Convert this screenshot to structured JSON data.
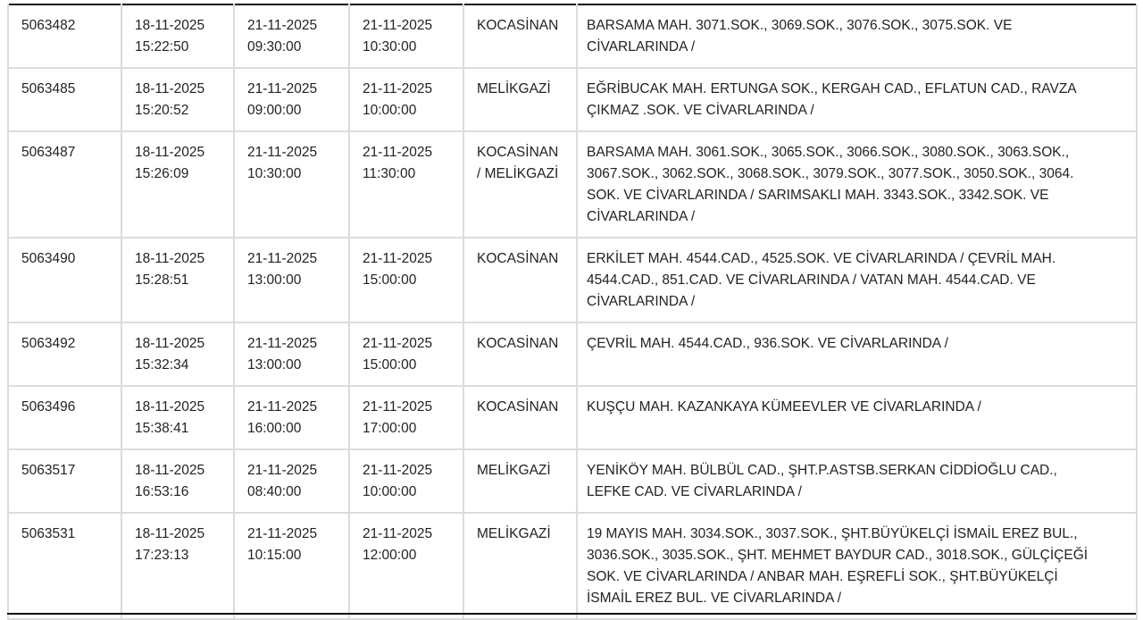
{
  "rows": [
    {
      "id": "5063482",
      "created": [
        "18-11-2025",
        "15:22:50"
      ],
      "start": [
        "21-11-2025",
        "09:30:00"
      ],
      "end": [
        "21-11-2025",
        "10:30:00"
      ],
      "district": [
        "KOCASİNAN"
      ],
      "address": [
        "BARSAMA MAH. 3071.SOK., 3069.SOK., 3076.SOK., 3075.SOK. VE",
        "CİVARLARINDA /"
      ]
    },
    {
      "id": "5063485",
      "created": [
        "18-11-2025",
        "15:20:52"
      ],
      "start": [
        "21-11-2025",
        "09:00:00"
      ],
      "end": [
        "21-11-2025",
        "10:00:00"
      ],
      "district": [
        "MELİKGAZİ"
      ],
      "address": [
        "EĞRİBUCAK MAH. ERTUNGA SOK., KERGAH CAD., EFLATUN CAD., RAVZA",
        "ÇIKMAZ .SOK. VE CİVARLARINDA /"
      ]
    },
    {
      "id": "5063487",
      "created": [
        "18-11-2025",
        "15:26:09"
      ],
      "start": [
        "21-11-2025",
        "10:30:00"
      ],
      "end": [
        "21-11-2025",
        "11:30:00"
      ],
      "district": [
        "KOCASİNAN",
        "/ MELİKGAZİ"
      ],
      "address": [
        "BARSAMA MAH. 3061.SOK., 3065.SOK., 3066.SOK., 3080.SOK., 3063.SOK.,",
        "3067.SOK., 3062.SOK., 3068.SOK., 3079.SOK., 3077.SOK., 3050.SOK., 3064.",
        "SOK. VE CİVARLARINDA / SARIMSAKLI MAH. 3343.SOK., 3342.SOK. VE",
        "CİVARLARINDA /"
      ]
    },
    {
      "id": "5063490",
      "created": [
        "18-11-2025",
        "15:28:51"
      ],
      "start": [
        "21-11-2025",
        "13:00:00"
      ],
      "end": [
        "21-11-2025",
        "15:00:00"
      ],
      "district": [
        "KOCASİNAN"
      ],
      "address": [
        "ERKİLET MAH. 4544.CAD., 4525.SOK. VE CİVARLARINDA / ÇEVRİL MAH.",
        "4544.CAD., 851.CAD. VE CİVARLARINDA / VATAN MAH. 4544.CAD. VE",
        "CİVARLARINDA /"
      ]
    },
    {
      "id": "5063492",
      "created": [
        "18-11-2025",
        "15:32:34"
      ],
      "start": [
        "21-11-2025",
        "13:00:00"
      ],
      "end": [
        "21-11-2025",
        "15:00:00"
      ],
      "district": [
        "KOCASİNAN"
      ],
      "address": [
        "ÇEVRİL MAH. 4544.CAD., 936.SOK. VE CİVARLARINDA /"
      ]
    },
    {
      "id": "5063496",
      "created": [
        "18-11-2025",
        "15:38:41"
      ],
      "start": [
        "21-11-2025",
        "16:00:00"
      ],
      "end": [
        "21-11-2025",
        "17:00:00"
      ],
      "district": [
        "KOCASİNAN"
      ],
      "address": [
        "KUŞÇU MAH. KAZANKAYA KÜMEEVLER VE CİVARLARINDA /"
      ]
    },
    {
      "id": "5063517",
      "created": [
        "18-11-2025",
        "16:53:16"
      ],
      "start": [
        "21-11-2025",
        "08:40:00"
      ],
      "end": [
        "21-11-2025",
        "10:00:00"
      ],
      "district": [
        "MELİKGAZİ"
      ],
      "address": [
        "YENİKÖY MAH. BÜLBÜL CAD., ŞHT.P.ASTSB.SERKAN CİDDİOĞLU CAD.,",
        "LEFKE CAD. VE CİVARLARINDA /"
      ]
    },
    {
      "id": "5063531",
      "created": [
        "18-11-2025",
        "17:23:13"
      ],
      "start": [
        "21-11-2025",
        "10:15:00"
      ],
      "end": [
        "21-11-2025",
        "12:00:00"
      ],
      "district": [
        "MELİKGAZİ"
      ],
      "address": [
        "19 MAYIS MAH. 3034.SOK., 3037.SOK., ŞHT.BÜYÜKELÇİ İSMAİL EREZ BUL.,",
        "3036.SOK., 3035.SOK., ŞHT. MEHMET BAYDUR CAD., 3018.SOK., GÜLÇİÇEĞİ",
        "SOK. VE CİVARLARINDA / ANBAR MAH. EŞREFLİ SOK., ŞHT.BÜYÜKELÇİ",
        "İSMAİL EREZ BUL. VE CİVARLARINDA /"
      ]
    }
  ]
}
